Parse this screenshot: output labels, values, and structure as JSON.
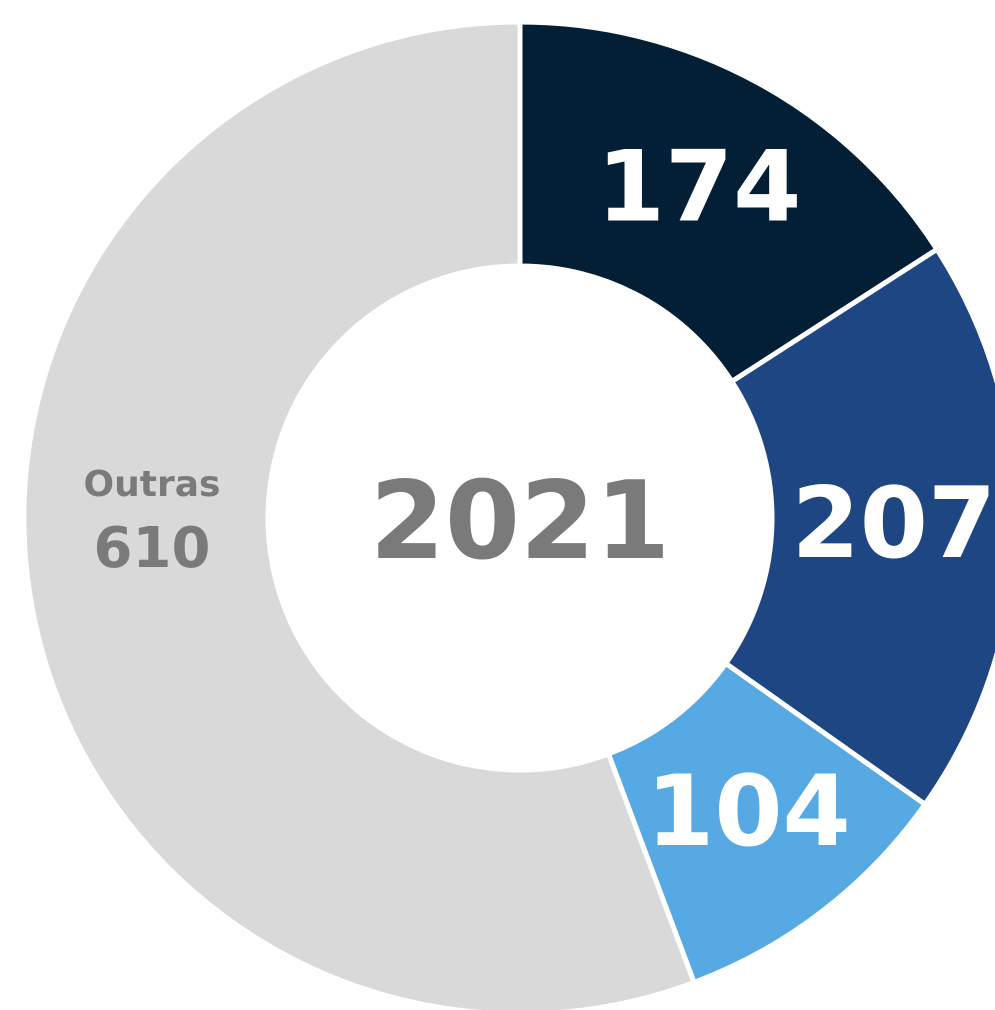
{
  "chart_data": {
    "type": "donut",
    "center_label": "2021",
    "categories": [
      null,
      null,
      null,
      "Outras"
    ],
    "values": [
      174,
      207,
      104,
      610
    ],
    "colors": [
      "#031f35",
      "#1e4682",
      "#56a9e3",
      "#d9d9d9"
    ],
    "label_colors": [
      "#ffffff",
      "#ffffff",
      "#ffffff",
      "#7a7a7a"
    ]
  }
}
